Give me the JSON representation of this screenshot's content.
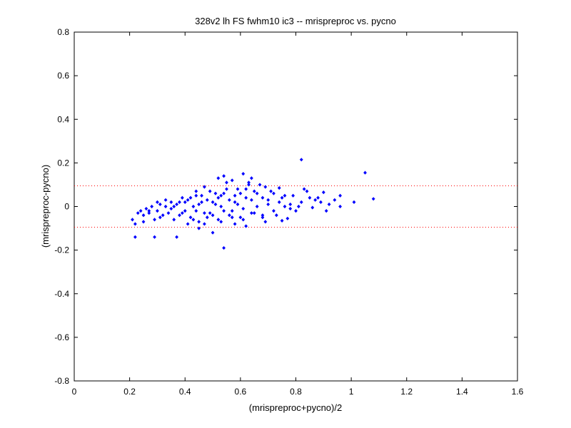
{
  "chart_data": {
    "type": "scatter",
    "title": "328v2 lh FS fwhm10 ic3 -- mrispreproc vs. pycno",
    "xlabel": "(mrispreproc+pycno)/2",
    "ylabel": "(mrispreproc-pycno)",
    "xlim": [
      0,
      1.6
    ],
    "ylim": [
      -0.8,
      0.8
    ],
    "xticks": [
      "0",
      "0.2",
      "0.4",
      "0.6",
      "0.8",
      "1",
      "1.2",
      "1.4",
      "1.6"
    ],
    "yticks": [
      "-0.8",
      "-0.6",
      "-0.4",
      "-0.2",
      "0",
      "0.2",
      "0.4",
      "0.6",
      "0.8"
    ],
    "reference_lines": [
      0.095,
      -0.095
    ],
    "colors": {
      "points": "#0000ff",
      "reference": "#ff0000"
    },
    "grid": false,
    "points": [
      [
        0.82,
        0.215
      ],
      [
        1.05,
        0.155
      ],
      [
        0.61,
        0.15
      ],
      [
        0.54,
        0.14
      ],
      [
        0.64,
        0.13
      ],
      [
        1.08,
        0.035
      ],
      [
        1.01,
        0.02
      ],
      [
        0.96,
        0.05
      ],
      [
        0.94,
        0.03
      ],
      [
        0.92,
        0.01
      ],
      [
        0.9,
        0.065
      ],
      [
        0.88,
        0.04
      ],
      [
        0.86,
        -0.005
      ],
      [
        0.84,
        0.07
      ],
      [
        0.82,
        0.02
      ],
      [
        0.8,
        -0.02
      ],
      [
        0.78,
        0.01
      ],
      [
        0.77,
        -0.055
      ],
      [
        0.75,
        -0.065
      ],
      [
        0.76,
        0.05
      ],
      [
        0.74,
        0.085
      ],
      [
        0.72,
        0.06
      ],
      [
        0.7,
        0.03
      ],
      [
        0.69,
        0.09
      ],
      [
        0.68,
        -0.04
      ],
      [
        0.66,
        0.0
      ],
      [
        0.65,
        0.07
      ],
      [
        0.64,
        -0.03
      ],
      [
        0.63,
        0.1
      ],
      [
        0.62,
        0.04
      ],
      [
        0.61,
        -0.01
      ],
      [
        0.6,
        0.06
      ],
      [
        0.59,
        0.08
      ],
      [
        0.58,
        0.02
      ],
      [
        0.57,
        -0.05
      ],
      [
        0.56,
        0.03
      ],
      [
        0.55,
        0.11
      ],
      [
        0.54,
        -0.02
      ],
      [
        0.53,
        0.05
      ],
      [
        0.52,
        0.13
      ],
      [
        0.52,
        -0.06
      ],
      [
        0.51,
        0.01
      ],
      [
        0.5,
        -0.04
      ],
      [
        0.49,
        0.07
      ],
      [
        0.48,
        0.03
      ],
      [
        0.47,
        -0.03
      ],
      [
        0.46,
        0.02
      ],
      [
        0.45,
        -0.07
      ],
      [
        0.44,
        0.05
      ],
      [
        0.43,
        0.0
      ],
      [
        0.42,
        -0.05
      ],
      [
        0.41,
        0.03
      ],
      [
        0.4,
        -0.02
      ],
      [
        0.39,
        0.04
      ],
      [
        0.38,
        -0.04
      ],
      [
        0.37,
        0.01
      ],
      [
        0.36,
        -0.06
      ],
      [
        0.35,
        0.02
      ],
      [
        0.34,
        -0.03
      ],
      [
        0.33,
        0.0
      ],
      [
        0.32,
        -0.04
      ],
      [
        0.31,
        0.01
      ],
      [
        0.3,
        -0.02
      ],
      [
        0.29,
        -0.06
      ],
      [
        0.28,
        0.0
      ],
      [
        0.27,
        -0.03
      ],
      [
        0.26,
        -0.01
      ],
      [
        0.25,
        -0.04
      ],
      [
        0.24,
        -0.02
      ],
      [
        0.23,
        -0.03
      ],
      [
        0.22,
        -0.08
      ],
      [
        0.21,
        -0.06
      ],
      [
        0.22,
        -0.14
      ],
      [
        0.29,
        -0.14
      ],
      [
        0.37,
        -0.14
      ],
      [
        0.54,
        -0.19
      ],
      [
        0.5,
        -0.12
      ],
      [
        0.45,
        -0.1
      ],
      [
        0.58,
        -0.08
      ],
      [
        0.62,
        -0.09
      ],
      [
        0.68,
        -0.05
      ],
      [
        0.73,
        -0.04
      ],
      [
        0.79,
        0.05
      ],
      [
        0.83,
        0.08
      ],
      [
        0.87,
        0.03
      ],
      [
        0.91,
        -0.02
      ],
      [
        0.96,
        0.0
      ],
      [
        0.44,
        0.07
      ],
      [
        0.47,
        0.09
      ],
      [
        0.51,
        0.06
      ],
      [
        0.55,
        0.08
      ],
      [
        0.57,
        0.12
      ],
      [
        0.63,
        0.11
      ],
      [
        0.67,
        0.1
      ],
      [
        0.71,
        0.07
      ],
      [
        0.75,
        0.04
      ],
      [
        0.78,
        -0.01
      ],
      [
        0.81,
        0.0
      ],
      [
        0.85,
        0.04
      ],
      [
        0.89,
        0.02
      ],
      [
        0.4,
        0.02
      ],
      [
        0.42,
        0.04
      ],
      [
        0.44,
        -0.02
      ],
      [
        0.46,
        0.05
      ],
      [
        0.48,
        -0.05
      ],
      [
        0.5,
        0.02
      ],
      [
        0.52,
        0.04
      ],
      [
        0.54,
        0.06
      ],
      [
        0.56,
        -0.04
      ],
      [
        0.58,
        0.05
      ],
      [
        0.6,
        -0.05
      ],
      [
        0.62,
        0.08
      ],
      [
        0.64,
        0.03
      ],
      [
        0.66,
        0.06
      ],
      [
        0.68,
        0.04
      ],
      [
        0.7,
        0.01
      ],
      [
        0.72,
        -0.02
      ],
      [
        0.74,
        0.02
      ],
      [
        0.76,
        0.0
      ],
      [
        0.33,
        0.03
      ],
      [
        0.35,
        -0.01
      ],
      [
        0.31,
        -0.05
      ],
      [
        0.27,
        -0.02
      ],
      [
        0.25,
        -0.07
      ],
      [
        0.38,
        0.02
      ],
      [
        0.41,
        -0.08
      ],
      [
        0.43,
        -0.06
      ],
      [
        0.47,
        -0.08
      ],
      [
        0.49,
        -0.03
      ],
      [
        0.53,
        -0.07
      ],
      [
        0.57,
        -0.02
      ],
      [
        0.61,
        -0.06
      ],
      [
        0.65,
        -0.03
      ],
      [
        0.69,
        -0.07
      ],
      [
        0.53,
        0.0
      ],
      [
        0.59,
        0.01
      ],
      [
        0.45,
        0.01
      ],
      [
        0.39,
        -0.03
      ],
      [
        0.36,
        0.0
      ],
      [
        0.3,
        0.02
      ]
    ]
  }
}
